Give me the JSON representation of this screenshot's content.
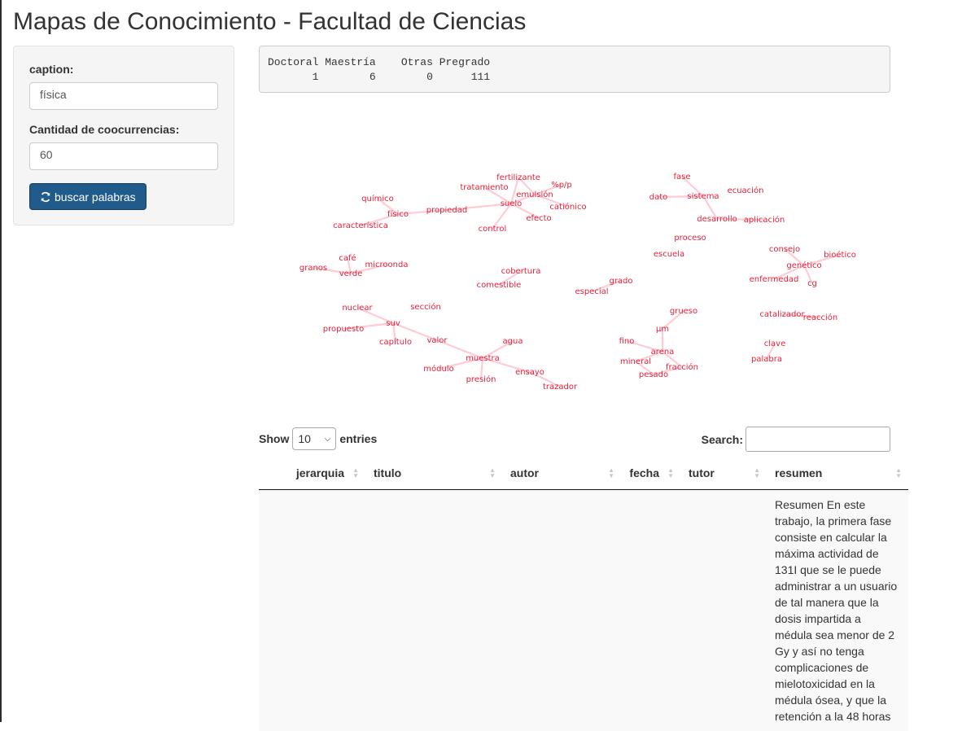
{
  "page": {
    "title": "Mapas de Conocimiento - Facultad de Ciencias"
  },
  "sidebar": {
    "caption_label": "caption:",
    "caption_value": "física",
    "count_label": "Cantidad de coocurrencias:",
    "count_value": "60",
    "button_icon": "refresh-icon",
    "button_label": "buscar palabras"
  },
  "summary": {
    "headers": [
      "Doctoral",
      "Maestría",
      "Otras",
      "Pregrado"
    ],
    "counts": [
      "1",
      "6",
      "0",
      "111"
    ]
  },
  "network": {
    "color": "#e8203a",
    "edge_color": "#ffb6c3",
    "words": [
      "fertilizante",
      "%p/p",
      "tratamiento",
      "emulsión",
      "suelo",
      "catiónico",
      "efecto",
      "control",
      "propiedad",
      "químico",
      "físico",
      "característica",
      "fase",
      "dato",
      "sistema",
      "ecuación",
      "desarrollo",
      "aplicación",
      "proceso",
      "escuela",
      "consejo",
      "bioético",
      "genético",
      "enfermedad",
      "cg",
      "café",
      "granos",
      "microonda",
      "verde",
      "cobertura",
      "comestible",
      "grado",
      "especial",
      "nuclear",
      "sección",
      "suv",
      "propuesto",
      "capítulo",
      "valor",
      "agua",
      "muestra",
      "módulo",
      "ensayo",
      "presión",
      "trazador",
      "grueso",
      "µm",
      "fino",
      "arena",
      "mineral",
      "fracción",
      "pesado",
      "catalizador",
      "reacción",
      "clave",
      "palabra"
    ]
  },
  "table": {
    "show_label": "Show",
    "entries_value": "10",
    "entries_label": "entries",
    "search_label": "Search:",
    "columns": [
      "jerarquia",
      "titulo",
      "autor",
      "fecha",
      "tutor",
      "resumen"
    ],
    "rows": [
      {
        "jerarquia": "",
        "titulo": "",
        "autor": "",
        "fecha": "",
        "tutor": "",
        "resumen": "Resumen En este trabajo, la primera fase consiste en calcular la máxima actividad de 131I que se le puede administrar a un usuario de tal manera que la dosis impartida a médula sea menor de 2 Gy y así no tenga complicaciones de mielotoxicidad en la médula ósea, y que la retención a la 48 horas"
      }
    ]
  }
}
